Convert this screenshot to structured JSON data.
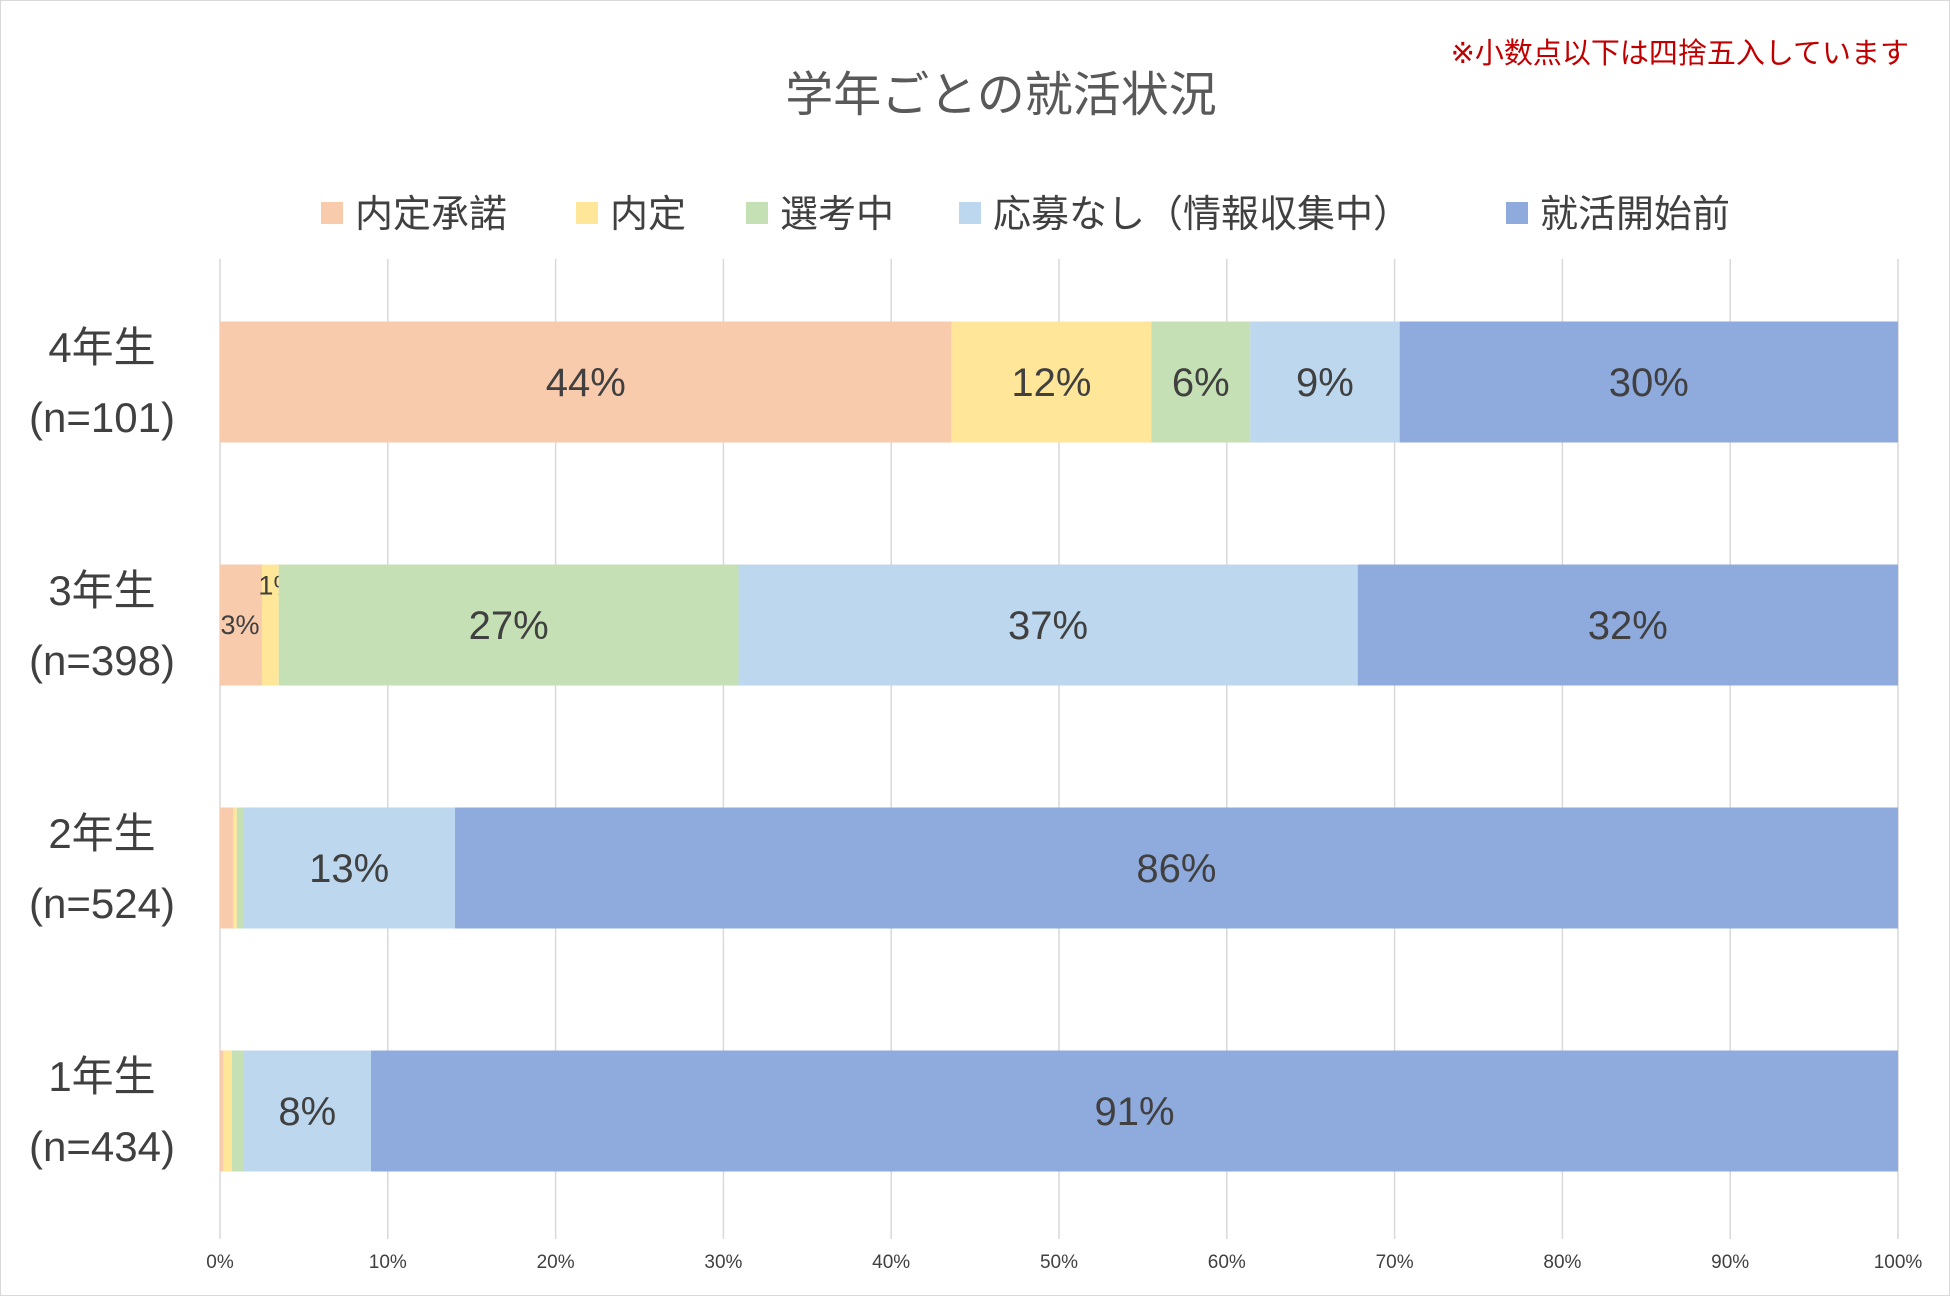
{
  "chart_data": {
    "type": "bar",
    "orientation": "horizontal",
    "stacked": "percent",
    "title": "学年ごとの就活状況",
    "note": "※小数点以下は四捨五入しています",
    "categories": [
      {
        "name": "4年生",
        "n": "(n=101)"
      },
      {
        "name": "3年生",
        "n": "(n=398)"
      },
      {
        "name": "2年生",
        "n": "(n=524)"
      },
      {
        "name": "1年生",
        "n": "(n=434)"
      }
    ],
    "series": [
      {
        "name": "内定承諾",
        "color": "#f8cbad",
        "values": [
          43.6,
          2.5,
          0.8,
          0.2
        ],
        "labels": [
          "44%",
          "3%",
          "",
          ""
        ]
      },
      {
        "name": "内定",
        "color": "#ffe699",
        "values": [
          11.9,
          1.0,
          0.2,
          0.5
        ],
        "labels": [
          "12%",
          "1%",
          "",
          ""
        ]
      },
      {
        "name": "選考中",
        "color": "#c5e0b4",
        "values": [
          5.9,
          27.4,
          0.4,
          0.7
        ],
        "labels": [
          "6%",
          "27%",
          "",
          ""
        ]
      },
      {
        "name": "応募なし（情報収集中）",
        "color": "#bdd7ee",
        "values": [
          8.9,
          36.9,
          12.6,
          7.6
        ],
        "labels": [
          "9%",
          "37%",
          "13%",
          "8%"
        ]
      },
      {
        "name": "就活開始前",
        "color": "#8faadc",
        "values": [
          29.7,
          32.2,
          86.0,
          91.0
        ],
        "labels": [
          "30%",
          "32%",
          "86%",
          "91%"
        ]
      }
    ],
    "xlim": [
      0,
      100
    ],
    "xticks": [
      "0%",
      "10%",
      "20%",
      "30%",
      "40%",
      "50%",
      "60%",
      "70%",
      "80%",
      "90%",
      "100%"
    ],
    "grid": true,
    "legend_position": "top"
  }
}
